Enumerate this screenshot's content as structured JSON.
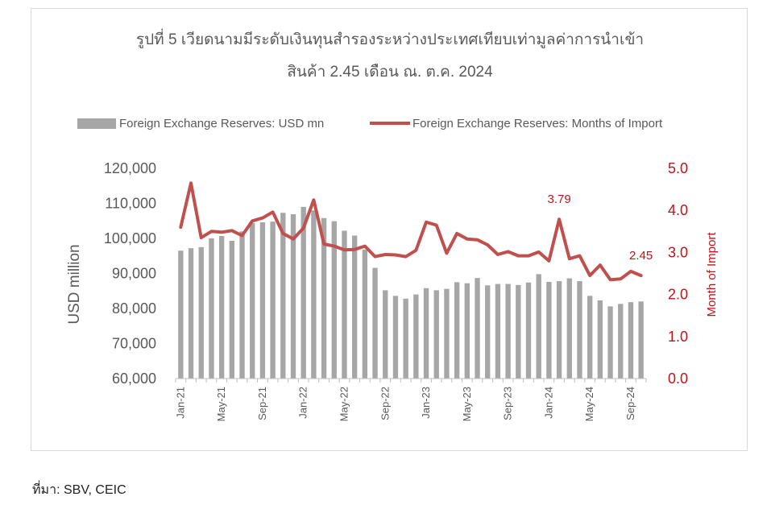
{
  "title_line1": "รูปที่ 5 เวียดนามมีระดับเงินทุนสำรองระหว่างประเทศเทียบเท่ามูลค่าการนำเข้า",
  "title_line2": "สินค้า 2.45 เดือน ณ. ต.ค. 2024",
  "source": "ที่มา: SBV, CEIC",
  "colors": {
    "bars": "#a6a6a6",
    "line": "#c0504d",
    "right_axis_text": "#c0141b",
    "text": "#595959"
  },
  "chart_data": {
    "type": "bar+line",
    "title": "รูปที่ 5 เวียดนามมีระดับเงินทุนสำรองระหว่างประเทศเทียบเท่ามูลค่าการนำเข้า สินค้า 2.45 เดือน ณ. ต.ค. 2024",
    "legend_position": "top",
    "ylabel_left": "USD million",
    "ylabel_right": "Month of Import",
    "ylim_left": [
      60000,
      120000
    ],
    "ylim_right": [
      0,
      5
    ],
    "yticks_left": [
      "120,000",
      "110,000",
      "100,000",
      "90,000",
      "80,000",
      "70,000",
      "60,000"
    ],
    "yticks_right": [
      "5.0",
      "4.0",
      "3.0",
      "2.0",
      "1.0",
      "0.0"
    ],
    "x_tick_labels": [
      "Jan-21",
      "May-21",
      "Sep-21",
      "Jan-22",
      "May-22",
      "Sep-22",
      "Jan-23",
      "May-23",
      "Sep-23",
      "Jan-24",
      "May-24",
      "Sep-24"
    ],
    "x_tick_indices": [
      0,
      4,
      8,
      12,
      16,
      20,
      24,
      28,
      32,
      36,
      40,
      44
    ],
    "categories": [
      "Jan-21",
      "Feb-21",
      "Mar-21",
      "Apr-21",
      "May-21",
      "Jun-21",
      "Jul-21",
      "Aug-21",
      "Sep-21",
      "Oct-21",
      "Nov-21",
      "Dec-21",
      "Jan-22",
      "Feb-22",
      "Mar-22",
      "Apr-22",
      "May-22",
      "Jun-22",
      "Jul-22",
      "Aug-22",
      "Sep-22",
      "Oct-22",
      "Nov-22",
      "Dec-22",
      "Jan-23",
      "Feb-23",
      "Mar-23",
      "Apr-23",
      "May-23",
      "Jun-23",
      "Jul-23",
      "Aug-23",
      "Sep-23",
      "Oct-23",
      "Nov-23",
      "Dec-23",
      "Jan-24",
      "Feb-24",
      "Mar-24",
      "Apr-24",
      "May-24",
      "Jun-24",
      "Jul-24",
      "Aug-24",
      "Sep-24",
      "Oct-24"
    ],
    "series": [
      {
        "name": "Foreign Exchange Reserves: USD mn",
        "type": "bar",
        "axis": "left",
        "values": [
          96500,
          97200,
          97500,
          100000,
          100700,
          99300,
          102000,
          104400,
          104600,
          104800,
          107300,
          106900,
          109000,
          108000,
          105800,
          104900,
          102200,
          100800,
          96800,
          91600,
          85200,
          83600,
          82800,
          84000,
          85800,
          85200,
          85600,
          87500,
          87200,
          88700,
          86600,
          87000,
          87000,
          86700,
          87400,
          89800,
          87600,
          87800,
          88600,
          87800,
          83600,
          82300,
          80600,
          81300,
          81800,
          82000
        ]
      },
      {
        "name": "Foreign Exchange Reserves: Months of Import",
        "type": "line",
        "axis": "right",
        "values": [
          3.6,
          4.65,
          3.35,
          3.5,
          3.48,
          3.52,
          3.4,
          3.75,
          3.82,
          3.96,
          3.45,
          3.32,
          3.58,
          4.25,
          3.2,
          3.15,
          3.06,
          3.07,
          3.15,
          2.9,
          2.95,
          2.94,
          2.9,
          3.05,
          3.72,
          3.65,
          2.98,
          3.45,
          3.32,
          3.3,
          3.18,
          2.95,
          3.02,
          2.92,
          2.92,
          3.01,
          2.8,
          3.79,
          2.85,
          2.92,
          2.45,
          2.7,
          2.35,
          2.37,
          2.55,
          2.45
        ]
      }
    ],
    "annotations": [
      {
        "index": 37,
        "text": "3.79"
      },
      {
        "index": 45,
        "text": "2.45"
      }
    ]
  }
}
